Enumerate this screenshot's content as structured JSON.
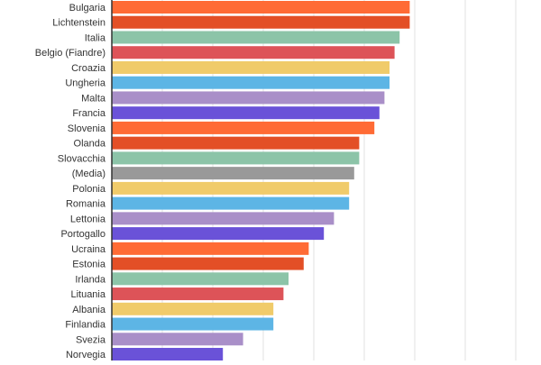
{
  "chart_data": {
    "type": "bar",
    "orientation": "horizontal",
    "categories": [
      "Bulgaria",
      "Lichtenstein",
      "Italia",
      "Belgio (Fiandre)",
      "Croazia",
      "Ungheria",
      "Malta",
      "Francia",
      "Slovenia",
      "Olanda",
      "Slovacchia",
      "(Media)",
      "Polonia",
      "Romania",
      "Lettonia",
      "Portogallo",
      "Ucraina",
      "Estonia",
      "Irlanda",
      "Lituania",
      "Albania",
      "Finlandia",
      "Svezia",
      "Norvegia"
    ],
    "values": [
      5.9,
      5.9,
      5.7,
      5.6,
      5.5,
      5.5,
      5.4,
      5.3,
      5.2,
      4.9,
      4.9,
      4.8,
      4.7,
      4.7,
      4.4,
      4.2,
      3.9,
      3.8,
      3.5,
      3.4,
      3.2,
      3.2,
      2.6,
      2.2
    ],
    "colors": [
      "#ff6b35",
      "#e34f26",
      "#8cc4a8",
      "#dd5358",
      "#f0cb6a",
      "#5db5e5",
      "#a98fc8",
      "#6a52d8",
      "#ff6b35",
      "#e34f26",
      "#8cc4a8",
      "#999999",
      "#f0cb6a",
      "#5db5e5",
      "#a98fc8",
      "#6a52d8",
      "#ff6b35",
      "#e34f26",
      "#8cc4a8",
      "#dd5358",
      "#f0cb6a",
      "#5db5e5",
      "#a98fc8",
      "#6a52d8"
    ],
    "xlim": [
      0,
      8.5
    ],
    "grid": true,
    "title": "",
    "xlabel": "",
    "ylabel": ""
  }
}
